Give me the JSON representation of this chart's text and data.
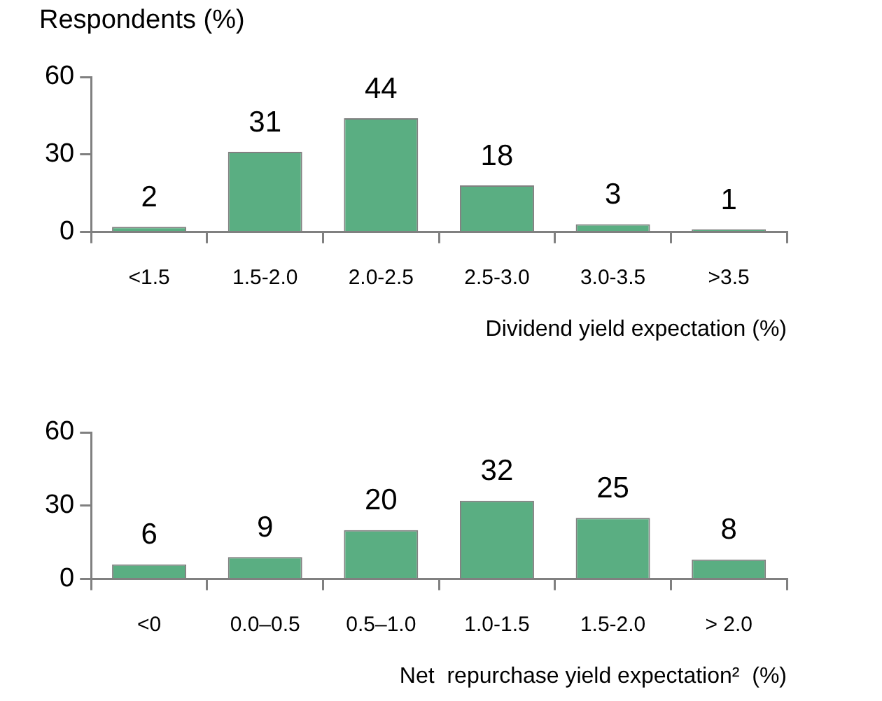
{
  "chart_data": [
    {
      "type": "bar",
      "ylabel": "Respondents (%)",
      "xlabel": "Dividend yield expectation (%)",
      "categories": [
        "<1.5",
        "1.5-2.0",
        "2.0-2.5",
        "2.5-3.0",
        "3.0-3.5",
        ">3.5"
      ],
      "values": [
        2,
        31,
        44,
        18,
        3,
        1
      ],
      "color": "#5aae82",
      "ylim": [
        0,
        60
      ],
      "yticks": [
        0,
        30,
        60
      ],
      "grid": false,
      "data_labels": true
    },
    {
      "type": "bar",
      "xlabel": "Net  repurchase yield expectation²  (%)",
      "categories": [
        "<0",
        "0.0–0.5",
        "0.5–1.0",
        "1.0-1.5",
        "1.5-2.0",
        "> 2.0"
      ],
      "values": [
        6,
        9,
        20,
        32,
        25,
        8
      ],
      "color": "#5aae82",
      "ylim": [
        0,
        60
      ],
      "yticks": [
        0,
        30,
        60
      ],
      "grid": false,
      "data_labels": true
    }
  ]
}
